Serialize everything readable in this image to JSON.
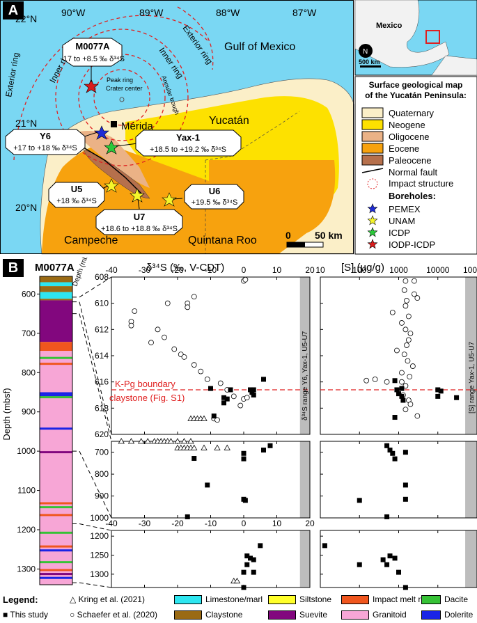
{
  "panel_a": {
    "label": "A",
    "lon_labels": [
      "90°W",
      "89°W",
      "88°W",
      "87°W"
    ],
    "lat_labels": [
      "22°N",
      "21°N",
      "20°N"
    ],
    "sea_label": "Gulf of Mexico",
    "region_labels": {
      "yucatan": "Yucatán",
      "campeche": "Campeche",
      "quintana_roo": "Quintana Roo",
      "merida": "Mérida"
    },
    "ring_labels": {
      "exterior_left": "Exterior ring",
      "inner_left": "Inner ring",
      "inner_right": "Inner ring",
      "exterior_right": "Exterior ring",
      "peak_ring": "Peak ring",
      "crater_center": "Crater center",
      "annular_trough": "Annular trough"
    },
    "callouts": [
      {
        "name": "M0077A",
        "value": "-17 to +8.5 ‰ δ³⁴S"
      },
      {
        "name": "Y6",
        "value": "+17 to +18 ‰ δ³⁴S"
      },
      {
        "name": "Yax-1",
        "value": "+18.5 to +19.2 ‰ δ³⁴S"
      },
      {
        "name": "U5",
        "value": "+18 ‰ δ³⁴S"
      },
      {
        "name": "U6",
        "value": "+19.5 ‰ δ³⁴S"
      },
      {
        "name": "U7",
        "value": "+18.6 to +18.8 ‰ δ³⁴S"
      }
    ],
    "scalebar": {
      "zero": "0",
      "end": "50 km"
    },
    "inset": {
      "country": "Mexico",
      "north": "N",
      "scale": "500 km"
    },
    "legend_title": "Surface geological map of the Yucatán Peninsula:",
    "geology": [
      {
        "label": "Quaternary",
        "color": "#fbefc8"
      },
      {
        "label": "Neogene",
        "color": "#fde100"
      },
      {
        "label": "Oligocene",
        "color": "#ebb286"
      },
      {
        "label": "Eocene",
        "color": "#f7a20e"
      },
      {
        "label": "Paleocene",
        "color": "#b6704c"
      }
    ],
    "normal_fault": "Normal fault",
    "impact_structure": "Impact structure",
    "boreholes_title": "Boreholes:",
    "boreholes": [
      {
        "label": "PEMEX",
        "color": "#1e2bd6"
      },
      {
        "label": "UNAM",
        "color": "#f5f52a"
      },
      {
        "label": "ICDP",
        "color": "#2ac83a"
      },
      {
        "label": "IODP-ICDP",
        "color": "#d81b1b"
      }
    ]
  },
  "panel_b": {
    "label": "B",
    "core_title": "M0077A",
    "core_axis_label": "Depth (mbsf)",
    "core_ticks": [
      "600",
      "700",
      "800",
      "900",
      "1000",
      "1100",
      "1200",
      "1300"
    ],
    "d34s_title": "δ³⁴S (‰, V-CDT)",
    "s_title": "[S] (µg/g)",
    "depth_axis_small": "Depth (mbsf)",
    "d34s_ticks": [
      "-40",
      "-30",
      "-20",
      "-10",
      "0",
      "10",
      "20"
    ],
    "s_ticks": [
      "10",
      "100",
      "1000",
      "10000",
      "100000"
    ],
    "upper_depth_ticks": [
      "608",
      "610",
      "612",
      "614",
      "616",
      "618",
      "620"
    ],
    "middle_depth_ticks": [
      "700",
      "800",
      "900",
      "1000"
    ],
    "lower_depth_ticks": [
      "1200",
      "1250",
      "1300"
    ],
    "kpg_label_line1": "K-Pg boundary",
    "kpg_label_line2": "claystone (Fig. S1)",
    "range_label_d34s": "δ³⁴S range Y6, Yax-1, U5-U7",
    "range_label_s": "[S] range Yax-1, U5-U7"
  },
  "legend": {
    "title": "Legend:",
    "kring": "Kring et al. (2021)",
    "schaefer": "Schaefer et al. (2020)",
    "this_study": "This study",
    "lithologies": [
      {
        "label": "Limestone/marl",
        "color": "#2ee6f0"
      },
      {
        "label": "Siltstone",
        "color": "#ffff2a"
      },
      {
        "label": "Impact melt rock",
        "color": "#f0561e"
      },
      {
        "label": "Dacite",
        "color": "#36c236"
      },
      {
        "label": "Claystone",
        "color": "#9a6a14"
      },
      {
        "label": "Suevite",
        "color": "#82077e"
      },
      {
        "label": "Granitoid",
        "color": "#f7a6d6"
      },
      {
        "label": "Dolerite",
        "color": "#1a24e6"
      }
    ]
  },
  "chart_data": [
    {
      "type": "scatter",
      "title": "δ³⁴S (‰, V-CDT)",
      "ylabel": "Depth (mbsf)",
      "xlim": [
        -40,
        20
      ],
      "ylim": [
        620,
        608
      ],
      "series": [
        {
          "name": "Schaefer et al. (2020)",
          "points": [
            [
              0,
              608.3
            ],
            [
              0.5,
              608.2
            ],
            [
              -15,
              609.5
            ],
            [
              -17,
              610
            ],
            [
              -17,
              610.3
            ],
            [
              -23,
              610
            ],
            [
              -33,
              610.6
            ],
            [
              -34,
              611.4
            ],
            [
              -34,
              611.7
            ],
            [
              -26,
              612
            ],
            [
              -24,
              612.6
            ],
            [
              -28,
              613
            ],
            [
              -21,
              613.5
            ],
            [
              -19,
              613.9
            ],
            [
              -18,
              614.1
            ],
            [
              -15,
              614.7
            ],
            [
              -13,
              615.2
            ],
            [
              -11,
              615.8
            ],
            [
              -7,
              616.1
            ],
            [
              -5,
              616.6
            ],
            [
              -3,
              617.1
            ],
            [
              0,
              617.3
            ],
            [
              1,
              617.2
            ],
            [
              -1,
              617.8
            ],
            [
              -9,
              618.8
            ],
            [
              -8,
              618.9
            ]
          ]
        },
        {
          "name": "Kring et al. (2021)",
          "points": [
            [
              -16,
              618.8
            ],
            [
              -15,
              618.8
            ],
            [
              -14,
              618.8
            ],
            [
              -13,
              618.8
            ],
            [
              -12,
              618.8
            ]
          ]
        },
        {
          "name": "This study",
          "points": [
            [
              6,
              615.8
            ],
            [
              -10,
              616.5
            ],
            [
              -4,
              616.6
            ],
            [
              2,
              616.6
            ],
            [
              3,
              616.6
            ],
            [
              2.5,
              616.8
            ],
            [
              -6,
              617.2
            ],
            [
              -5,
              617.3
            ],
            [
              3,
              617
            ],
            [
              -6,
              617.6
            ],
            [
              -9,
              618.6
            ]
          ]
        }
      ],
      "kpg_depth": 616.6,
      "reference_range": [
        17,
        20
      ]
    },
    {
      "type": "scatter",
      "title": "δ³⁴S (‰, V-CDT)",
      "ylabel": "Depth (mbsf)",
      "xlim": [
        -40,
        20
      ],
      "ylim": [
        1000,
        650
      ],
      "series": [
        {
          "name": "Kring et al. (2021)",
          "points": [
            [
              -37,
              650
            ],
            [
              -34,
              650
            ],
            [
              -31,
              650
            ],
            [
              -29,
              650
            ],
            [
              -27,
              650
            ],
            [
              -26,
              650
            ],
            [
              -25,
              650
            ],
            [
              -24,
              650
            ],
            [
              -23,
              650
            ],
            [
              -22,
              650
            ],
            [
              -20,
              650
            ],
            [
              -18,
              650
            ],
            [
              -16,
              650
            ],
            [
              -20,
              680
            ],
            [
              -19,
              680
            ],
            [
              -18,
              680
            ],
            [
              -17,
              680
            ],
            [
              -16,
              680
            ],
            [
              -15,
              680
            ],
            [
              -12,
              680
            ],
            [
              -8,
              680
            ],
            [
              -5,
              680
            ]
          ]
        },
        {
          "name": "This study",
          "points": [
            [
              8,
              670
            ],
            [
              6,
              690
            ],
            [
              0,
              705
            ],
            [
              0,
              730
            ],
            [
              -15,
              728
            ],
            [
              -11,
              850
            ],
            [
              0,
              915
            ],
            [
              0.5,
              920
            ],
            [
              -17,
              995
            ]
          ]
        }
      ],
      "reference_range": [
        17,
        20
      ]
    },
    {
      "type": "scatter",
      "title": "δ³⁴S (‰, V-CDT)",
      "ylabel": "Depth (mbsf)",
      "xlim": [
        -40,
        20
      ],
      "ylim": [
        1335,
        1185
      ],
      "series": [
        {
          "name": "Kring et al. (2021)",
          "points": [
            [
              -3,
              1318
            ],
            [
              -2,
              1318
            ]
          ]
        },
        {
          "name": "This study",
          "points": [
            [
              5,
              1225
            ],
            [
              1,
              1252
            ],
            [
              2,
              1258
            ],
            [
              3,
              1262
            ],
            [
              1,
              1275
            ],
            [
              0,
              1295
            ],
            [
              3,
              1295
            ],
            [
              0,
              1335
            ]
          ]
        }
      ],
      "reference_range": [
        17,
        20
      ]
    },
    {
      "type": "scatter",
      "title": "[S] (µg/g)",
      "xscale": "log",
      "xlim": [
        10,
        100000
      ],
      "ylim": [
        620,
        608
      ],
      "series": [
        {
          "name": "Schaefer et al. (2020)",
          "points": [
            [
              1500,
              608.3
            ],
            [
              2500,
              608.3
            ],
            [
              1400,
              609
            ],
            [
              2500,
              609.3
            ],
            [
              1600,
              609.8
            ],
            [
              3000,
              609.6
            ],
            [
              1500,
              610.2
            ],
            [
              700,
              610.7
            ],
            [
              1800,
              611
            ],
            [
              1200,
              611.5
            ],
            [
              1500,
              612
            ],
            [
              2000,
              612.3
            ],
            [
              1800,
              612.8
            ],
            [
              1600,
              613.2
            ],
            [
              900,
              613.6
            ],
            [
              1400,
              613.9
            ],
            [
              1700,
              614.4
            ],
            [
              2300,
              614.8
            ],
            [
              1200,
              615.3
            ],
            [
              1900,
              615.6
            ],
            [
              150,
              615.9
            ],
            [
              250,
              615.8
            ],
            [
              500,
              616
            ],
            [
              1200,
              616
            ],
            [
              1500,
              616.3
            ],
            [
              1300,
              617
            ],
            [
              1800,
              617.4
            ],
            [
              2000,
              617.7
            ],
            [
              1500,
              618.1
            ],
            [
              3000,
              618.6
            ]
          ]
        },
        {
          "name": "This study",
          "points": [
            [
              800,
              615.9
            ],
            [
              900,
              616.6
            ],
            [
              1200,
              616.5
            ],
            [
              10000,
              616.6
            ],
            [
              12000,
              616.7
            ],
            [
              1000,
              616.9
            ],
            [
              1200,
              617.1
            ],
            [
              10000,
              617.1
            ],
            [
              30000,
              617.2
            ],
            [
              1300,
              617.4
            ],
            [
              800,
              618.7
            ]
          ]
        }
      ],
      "kpg_depth": 616.6,
      "reference_range": [
        50000,
        100000
      ]
    },
    {
      "type": "scatter",
      "title": "[S] (µg/g)",
      "xscale": "log",
      "xlim": [
        10,
        100000
      ],
      "ylim": [
        1000,
        650
      ],
      "series": [
        {
          "name": "This study",
          "points": [
            [
              500,
              670
            ],
            [
              600,
              690
            ],
            [
              700,
              705
            ],
            [
              800,
              730
            ],
            [
              1500,
              700
            ],
            [
              1500,
              850
            ],
            [
              1500,
              915
            ],
            [
              100,
              920
            ],
            [
              500,
              995
            ]
          ]
        }
      ],
      "reference_range": [
        50000,
        100000
      ]
    },
    {
      "type": "scatter",
      "title": "[S] (µg/g)",
      "xscale": "log",
      "xlim": [
        10,
        100000
      ],
      "ylim": [
        1335,
        1185
      ],
      "series": [
        {
          "name": "This study",
          "points": [
            [
              13,
              1225
            ],
            [
              600,
              1252
            ],
            [
              800,
              1258
            ],
            [
              400,
              1262
            ],
            [
              100,
              1275
            ],
            [
              500,
              1275
            ],
            [
              1000,
              1295
            ],
            [
              1500,
              1335
            ]
          ]
        }
      ],
      "reference_range": [
        50000,
        100000
      ]
    }
  ]
}
